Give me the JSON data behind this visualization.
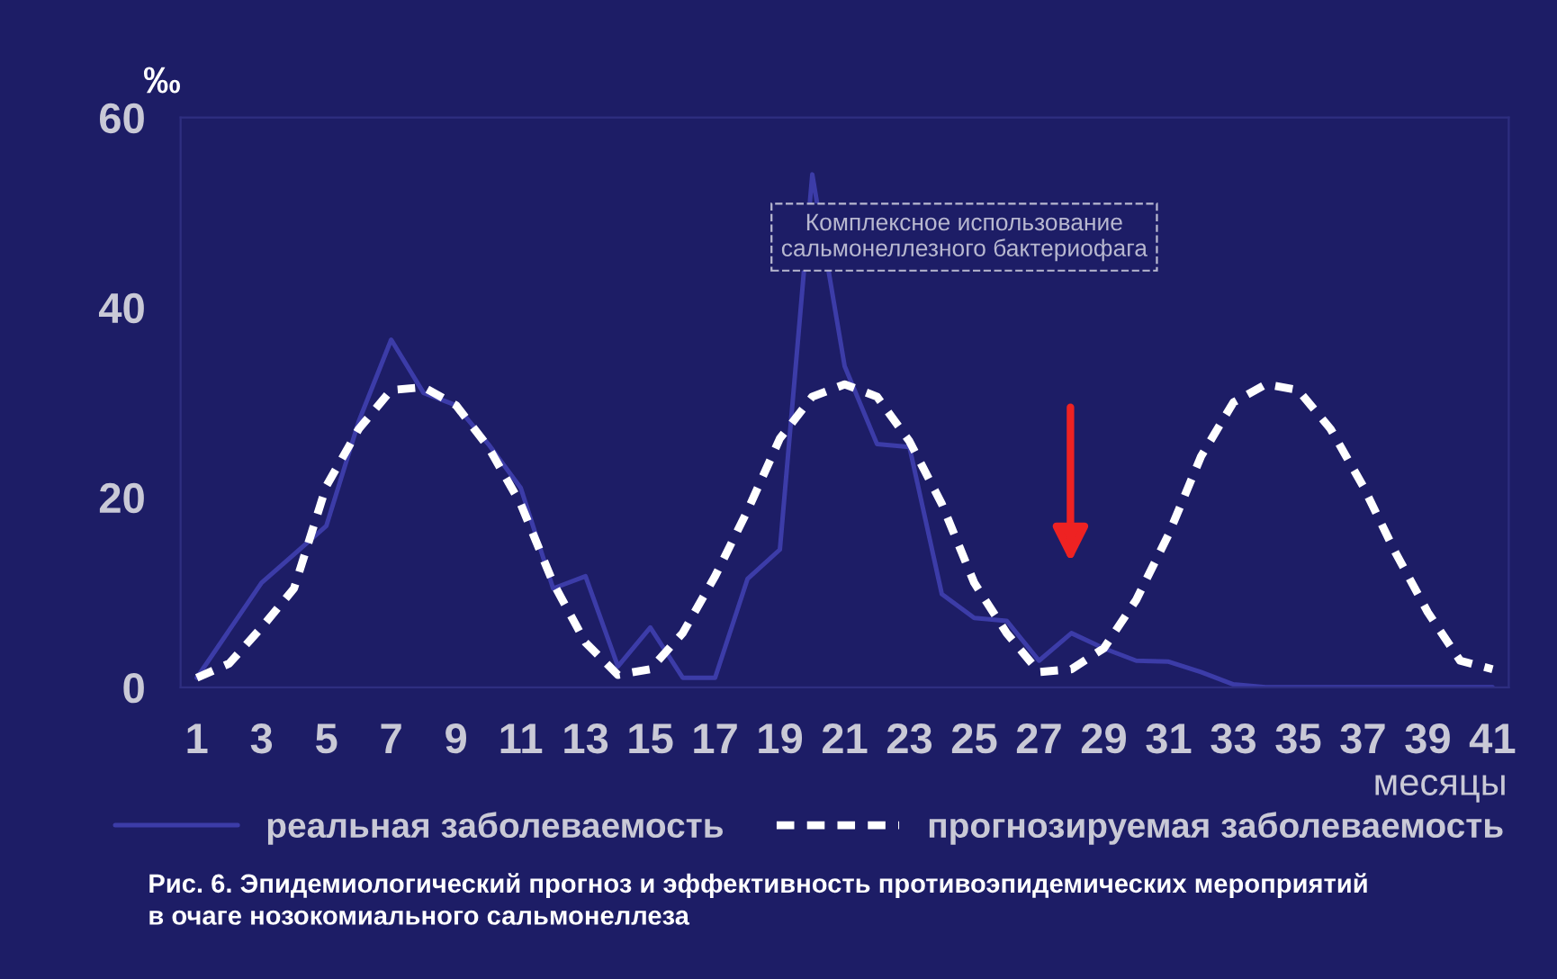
{
  "chart_data": {
    "type": "line",
    "ylabel": "‰",
    "xlabel": "месяцы",
    "x": [
      1,
      2,
      3,
      4,
      5,
      6,
      7,
      8,
      9,
      10,
      11,
      12,
      13,
      14,
      15,
      16,
      17,
      18,
      19,
      20,
      21,
      22,
      23,
      24,
      25,
      26,
      27,
      28,
      29,
      30,
      31,
      32,
      33,
      34,
      35,
      36,
      37,
      38,
      39,
      40,
      41
    ],
    "series": [
      {
        "name": "реальная заболеваемость",
        "color": "#3c3ca8",
        "line_style": "solid",
        "values": [
          1,
          6,
          11,
          14,
          17,
          28,
          36.6,
          31,
          29.7,
          25.6,
          21,
          10.4,
          11.7,
          2.2,
          6.3,
          1,
          1,
          11.4,
          14.5,
          54,
          33.8,
          25.6,
          25.3,
          9.8,
          7.3,
          7,
          2.8,
          5.7,
          4.1,
          2.8,
          2.7,
          1.6,
          0.3,
          0,
          0,
          0,
          0,
          0,
          0,
          0,
          0
        ]
      },
      {
        "name": "прогнозируемая заболеваемость",
        "color": "#ffffff",
        "line_style": "dashed",
        "values": [
          1,
          2.5,
          6.3,
          10.4,
          21.2,
          27.2,
          31.3,
          31.6,
          29.7,
          25.3,
          19.3,
          11,
          4.7,
          1.3,
          1.9,
          5.7,
          11.7,
          18.6,
          26.2,
          30.6,
          31.9,
          30.6,
          25.9,
          19.3,
          11,
          5.7,
          1.6,
          1.9,
          4.1,
          9.2,
          16.1,
          24.3,
          30,
          31.9,
          31.3,
          27.2,
          21.2,
          14.2,
          7.9,
          2.8,
          1.9
        ]
      }
    ],
    "xlim": [
      0.5,
      41.5
    ],
    "ylim": [
      0,
      60
    ],
    "xticks": [
      1,
      3,
      5,
      7,
      9,
      11,
      13,
      15,
      17,
      19,
      21,
      23,
      25,
      27,
      29,
      31,
      33,
      35,
      37,
      39,
      41
    ],
    "yticks": [
      0,
      20,
      40,
      60
    ],
    "grid": false,
    "legend": "bottom",
    "marker": "none",
    "annotations": [
      "Комплексное использование\nсальмонеллезного бактериофага",
      "Рис. 6. Эпидемиологический прогноз и эффективность противоэпидемических мероприятий\nв очаге нозокомиального сальмонеллеза"
    ]
  }
}
